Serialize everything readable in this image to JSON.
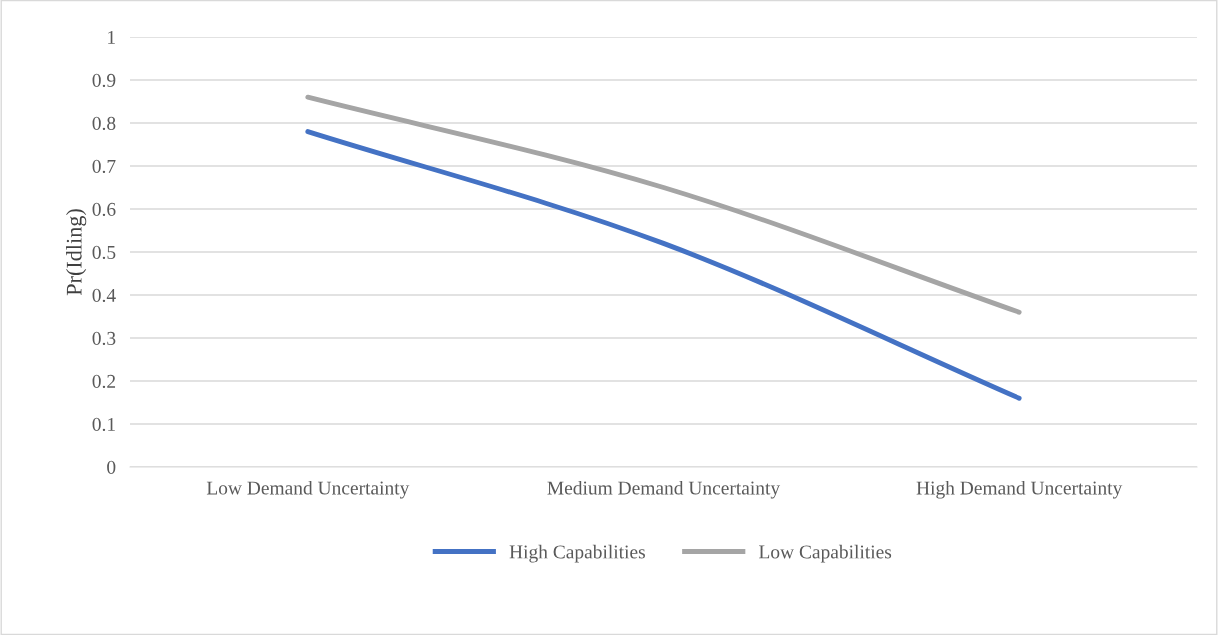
{
  "chart_data": {
    "type": "line",
    "ylabel": "Pr(Idling)",
    "categories": [
      "Low Demand Uncertainty",
      "Medium Demand Uncertainty",
      "High Demand Uncertainty"
    ],
    "series": [
      {
        "name": "High Capabilities",
        "color": "#4472c4",
        "values": [
          0.78,
          0.52,
          0.16
        ]
      },
      {
        "name": "Low Capabilities",
        "color": "#a5a5a5",
        "values": [
          0.86,
          0.65,
          0.36
        ]
      }
    ],
    "ylim": [
      0,
      1
    ],
    "yticks": [
      0,
      0.1,
      0.2,
      0.3,
      0.4,
      0.5,
      0.6,
      0.7,
      0.8,
      0.9,
      1
    ],
    "grid": "y",
    "legend": "bottom",
    "marker": "none",
    "line_style": "solid"
  }
}
